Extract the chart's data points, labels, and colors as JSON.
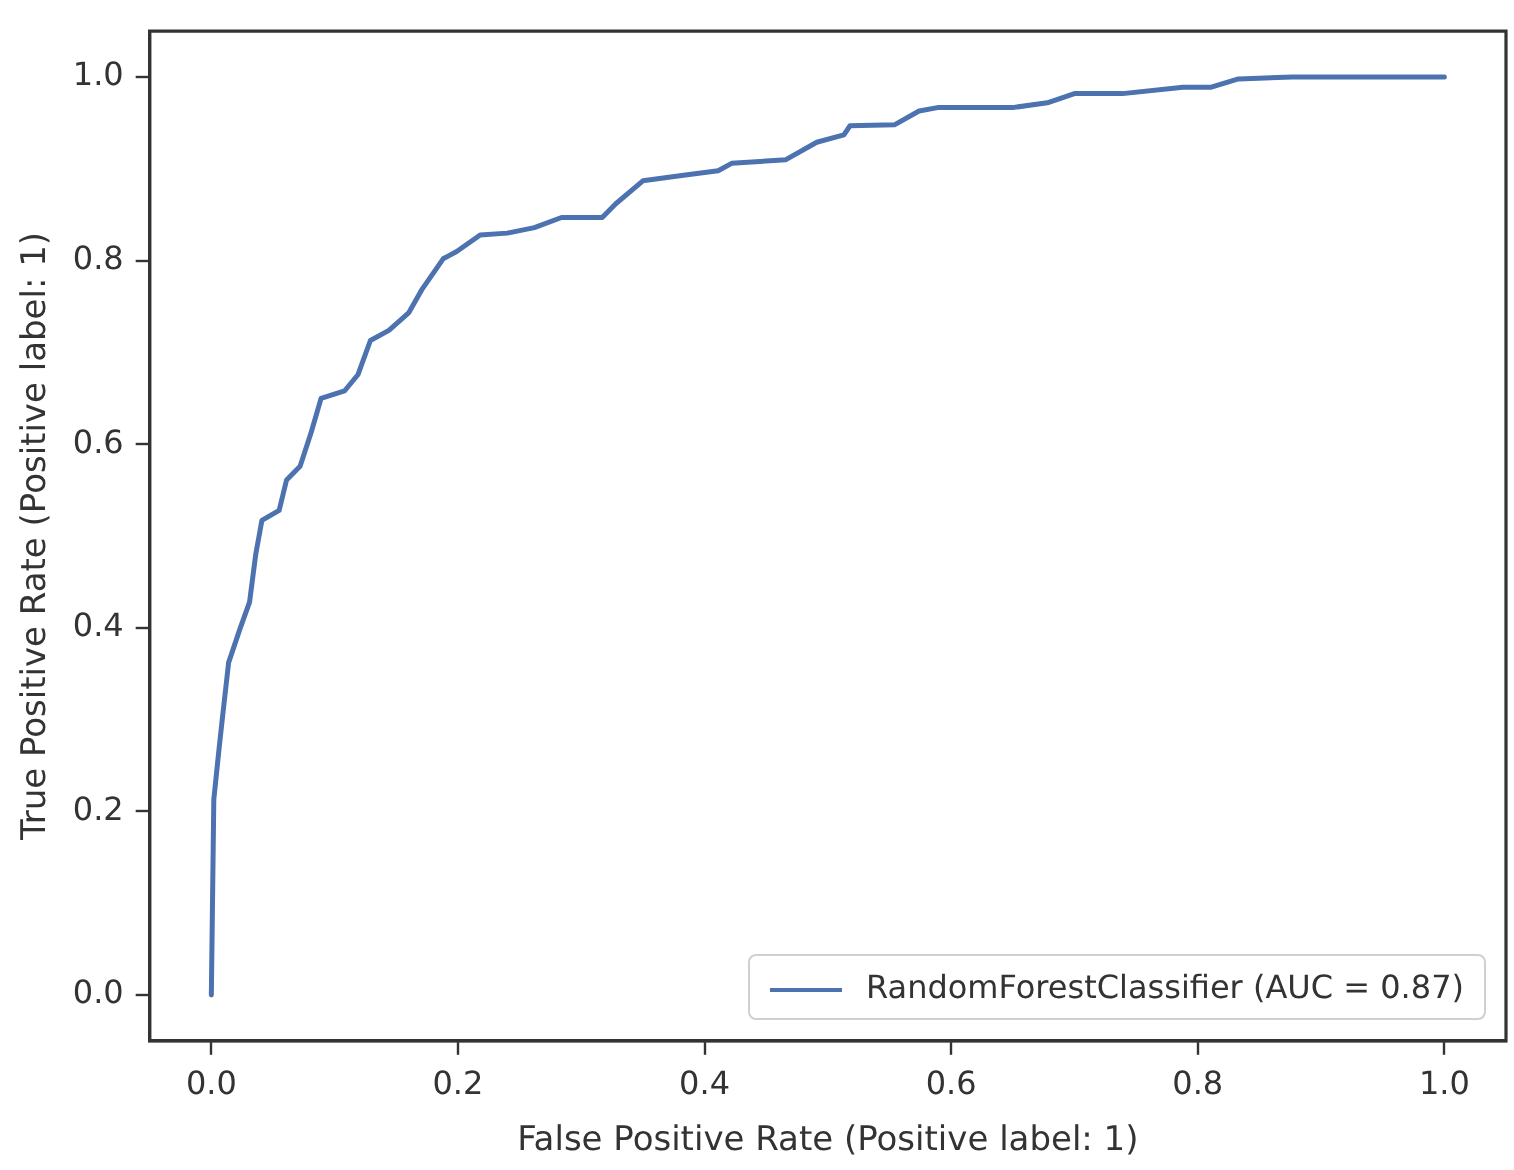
{
  "chart_data": {
    "type": "line",
    "xlabel": "False Positive Rate (Positive label: 1)",
    "ylabel": "True Positive Rate (Positive label: 1)",
    "xlim": [
      -0.05,
      1.05
    ],
    "ylim": [
      -0.05,
      1.05
    ],
    "xticks": [
      {
        "value": 0,
        "label": "0.0"
      },
      {
        "value": 0.2,
        "label": "0.2"
      },
      {
        "value": 0.4,
        "label": "0.4"
      },
      {
        "value": 0.6,
        "label": "0.6"
      },
      {
        "value": 0.8,
        "label": "0.8"
      },
      {
        "value": 1,
        "label": "1.0"
      }
    ],
    "yticks": [
      {
        "value": 0,
        "label": "0.0"
      },
      {
        "value": 0.2,
        "label": "0.2"
      },
      {
        "value": 0.4,
        "label": "0.4"
      },
      {
        "value": 0.6,
        "label": "0.6"
      },
      {
        "value": 0.8,
        "label": "0.8"
      },
      {
        "value": 1,
        "label": "1.0"
      }
    ],
    "grid": false,
    "legend": "bottom right",
    "marker": "none",
    "line_style": "solid",
    "series": [
      {
        "name": "RandomForestClassifier (AUC = 0.87)",
        "color": "#4c72b0",
        "x": [
          0,
          0.002,
          0.006,
          0.009,
          0.014,
          0.023,
          0.031,
          0.036,
          0.041,
          0.055,
          0.061,
          0.072,
          0.081,
          0.089,
          0.108,
          0.119,
          0.129,
          0.144,
          0.16,
          0.171,
          0.188,
          0.199,
          0.218,
          0.24,
          0.262,
          0.284,
          0.317,
          0.328,
          0.35,
          0.383,
          0.411,
          0.422,
          0.466,
          0.491,
          0.513,
          0.518,
          0.554,
          0.574,
          0.59,
          0.651,
          0.678,
          0.7,
          0.739,
          0.788,
          0.811,
          0.833,
          0.877,
          1
        ],
        "values": [
          0,
          0.213,
          0.265,
          0.302,
          0.362,
          0.398,
          0.428,
          0.48,
          0.517,
          0.528,
          0.561,
          0.576,
          0.613,
          0.65,
          0.658,
          0.676,
          0.713,
          0.724,
          0.743,
          0.769,
          0.802,
          0.81,
          0.828,
          0.83,
          0.836,
          0.847,
          0.847,
          0.862,
          0.887,
          0.893,
          0.898,
          0.906,
          0.91,
          0.929,
          0.937,
          0.947,
          0.948,
          0.963,
          0.967,
          0.967,
          0.972,
          0.982,
          0.982,
          0.989,
          0.989,
          0.998,
          1,
          1
        ]
      }
    ]
  }
}
